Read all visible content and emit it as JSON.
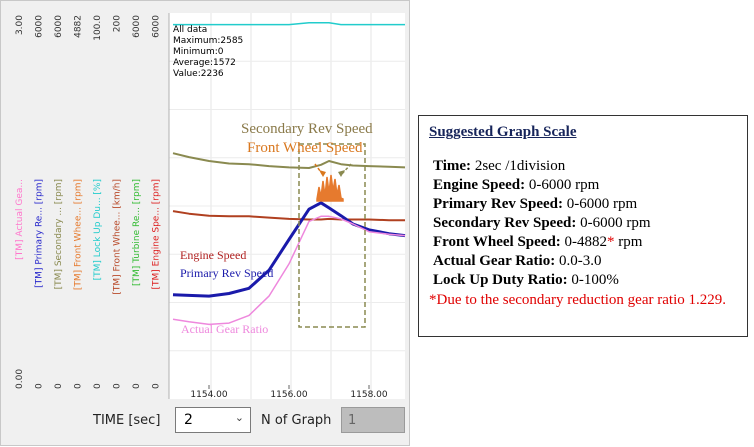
{
  "chart_data": {
    "type": "line",
    "x": [
      1153.1,
      1153.5,
      1154.0,
      1154.5,
      1155.0,
      1155.5,
      1156.0,
      1156.5,
      1156.8,
      1157.0,
      1157.3,
      1157.6,
      1158.0,
      1158.5,
      1158.9
    ],
    "xlim": [
      1153.0,
      1158.9
    ],
    "x_ticks": [
      "1154.00",
      "1156.00",
      "1158.00"
    ],
    "y_axes": [
      {
        "name": "[TM] Actual Gea...",
        "max": "3.00",
        "min": "0.00",
        "color": "#ff77cc"
      },
      {
        "name": "[TM] Primary Re... [rpm]",
        "max": "6000",
        "min": "0",
        "color": "#2a2acc"
      },
      {
        "name": "[TM] Secondary ... [rpm]",
        "max": "6000",
        "min": "0",
        "color": "#8a8a50"
      },
      {
        "name": "[TM] Front Whee... [rpm]",
        "max": "4882",
        "min": "0",
        "color": "#e67a2e"
      },
      {
        "name": "[TM] Lock Up Du... [%]",
        "max": "100.0",
        "min": "0",
        "color": "#22cccc"
      },
      {
        "name": "[TM] Front Whee... [km/h]",
        "max": "200",
        "min": "0",
        "color": "#b84a2a"
      },
      {
        "name": "[TM] Turbine Re... [rpm]",
        "max": "6000",
        "min": "0",
        "color": "#33bb33"
      },
      {
        "name": "[TM] Engine Spe... [rpm]",
        "max": "6000",
        "min": "0",
        "color": "#dd2222"
      }
    ],
    "stats": {
      "heading": "All data",
      "maximum": "Maximum:2585",
      "minimum": "Minimum:0",
      "average": "Average:1572",
      "value": "Value:2236"
    },
    "series": [
      {
        "name": "Lock Up Duty Ratio",
        "axis": 4,
        "color": "#22cccc",
        "width": 1.5,
        "values": [
          97,
          97,
          97,
          97,
          97,
          97,
          97,
          97.5,
          97.5,
          97.5,
          97,
          97,
          97,
          97,
          97
        ]
      },
      {
        "name": "Secondary Rev Speed",
        "axis": 2,
        "color": "#8a8a50",
        "width": 2,
        "values": [
          3820,
          3760,
          3700,
          3660,
          3650,
          3620,
          3600,
          3590,
          3640,
          3700,
          3650,
          3630,
          3620,
          3610,
          3600
        ]
      },
      {
        "name": "Engine Speed",
        "axis": 7,
        "color": "#b04020",
        "width": 2,
        "values": [
          2920,
          2880,
          2850,
          2840,
          2840,
          2820,
          2800,
          2790,
          2790,
          2800,
          2790,
          2790,
          2790,
          2780,
          2780
        ]
      },
      {
        "name": "Primary Rev Speed",
        "axis": 1,
        "color": "#1a1aaa",
        "width": 3,
        "values": [
          1620,
          1610,
          1600,
          1640,
          1720,
          2000,
          2480,
          2950,
          3050,
          2970,
          2850,
          2720,
          2630,
          2570,
          2540
        ]
      },
      {
        "name": "Actual Gear Ratio",
        "axis": 0,
        "color": "#ee88dd",
        "width": 1.5,
        "values": [
          0.62,
          0.6,
          0.58,
          0.59,
          0.65,
          0.8,
          1.05,
          1.38,
          1.42,
          1.42,
          1.4,
          1.36,
          1.3,
          1.28,
          1.27
        ]
      }
    ],
    "annotations": {
      "secondary": "Secondary Rev Speed",
      "front_wheel": "Front Wheel Speed",
      "engine": "Engine Speed",
      "primary": "Primary Rev Speed",
      "gear_ratio": "Actual Gear Ratio"
    }
  },
  "controls": {
    "time_label": "TIME [sec]",
    "time_value": "2",
    "ngraph_label": "N of Graph",
    "ngraph_value": "1"
  },
  "scale_box": {
    "title": "Suggested Graph Scale",
    "rows": [
      {
        "label": "Time:",
        "value": " 2sec /1division",
        "mark": ""
      },
      {
        "label": "Engine Speed:",
        "value": " 0-6000 rpm",
        "mark": ""
      },
      {
        "label": "Primary Rev Speed:",
        "value": " 0-6000 rpm",
        "mark": ""
      },
      {
        "label": "Secondary Rev Speed:",
        "value": " 0-6000 rpm",
        "mark": ""
      },
      {
        "label": "Front Wheel Speed:",
        "value": " 0-4882",
        "mark": "*",
        "tail": " rpm"
      },
      {
        "label": "Actual Gear Ratio:",
        "value": " 0.0-3.0",
        "mark": ""
      },
      {
        "label": "Lock Up Duty Ratio:",
        "value": " 0-100%",
        "mark": ""
      }
    ],
    "note": "*Due to the secondary reduction gear ratio 1.229.",
    "note_color": "#e00000"
  }
}
